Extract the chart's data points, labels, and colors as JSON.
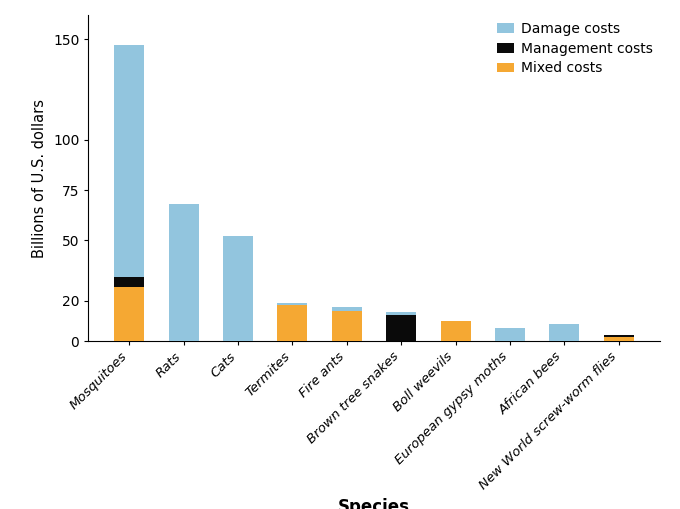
{
  "species": [
    "Mosquitoes",
    "Rats",
    "Cats",
    "Termites",
    "Fire ants",
    "Brown tree snakes",
    "Boll weevils",
    "European gypsy moths",
    "African bees",
    "New World screw-worm flies"
  ],
  "damage_costs": [
    115,
    68,
    52,
    1.0,
    2.0,
    1.5,
    0,
    6.5,
    8.5,
    0
  ],
  "management_costs": [
    5,
    0,
    0,
    0,
    0,
    13,
    0,
    0,
    0,
    0.8
  ],
  "mixed_costs": [
    27,
    0,
    0,
    18,
    15,
    0,
    10,
    0,
    0,
    2.2
  ],
  "damage_color": "#92C5DE",
  "management_color": "#0A0A0A",
  "mixed_color": "#F5A833",
  "ylabel": "Billions of U.S. dollars",
  "xlabel": "Species",
  "ylim": [
    0,
    162
  ],
  "yticks": [
    0,
    20,
    50,
    75,
    100,
    150
  ],
  "legend_labels": [
    "Damage costs",
    "Management costs",
    "Mixed costs"
  ],
  "background_color": "#ffffff"
}
